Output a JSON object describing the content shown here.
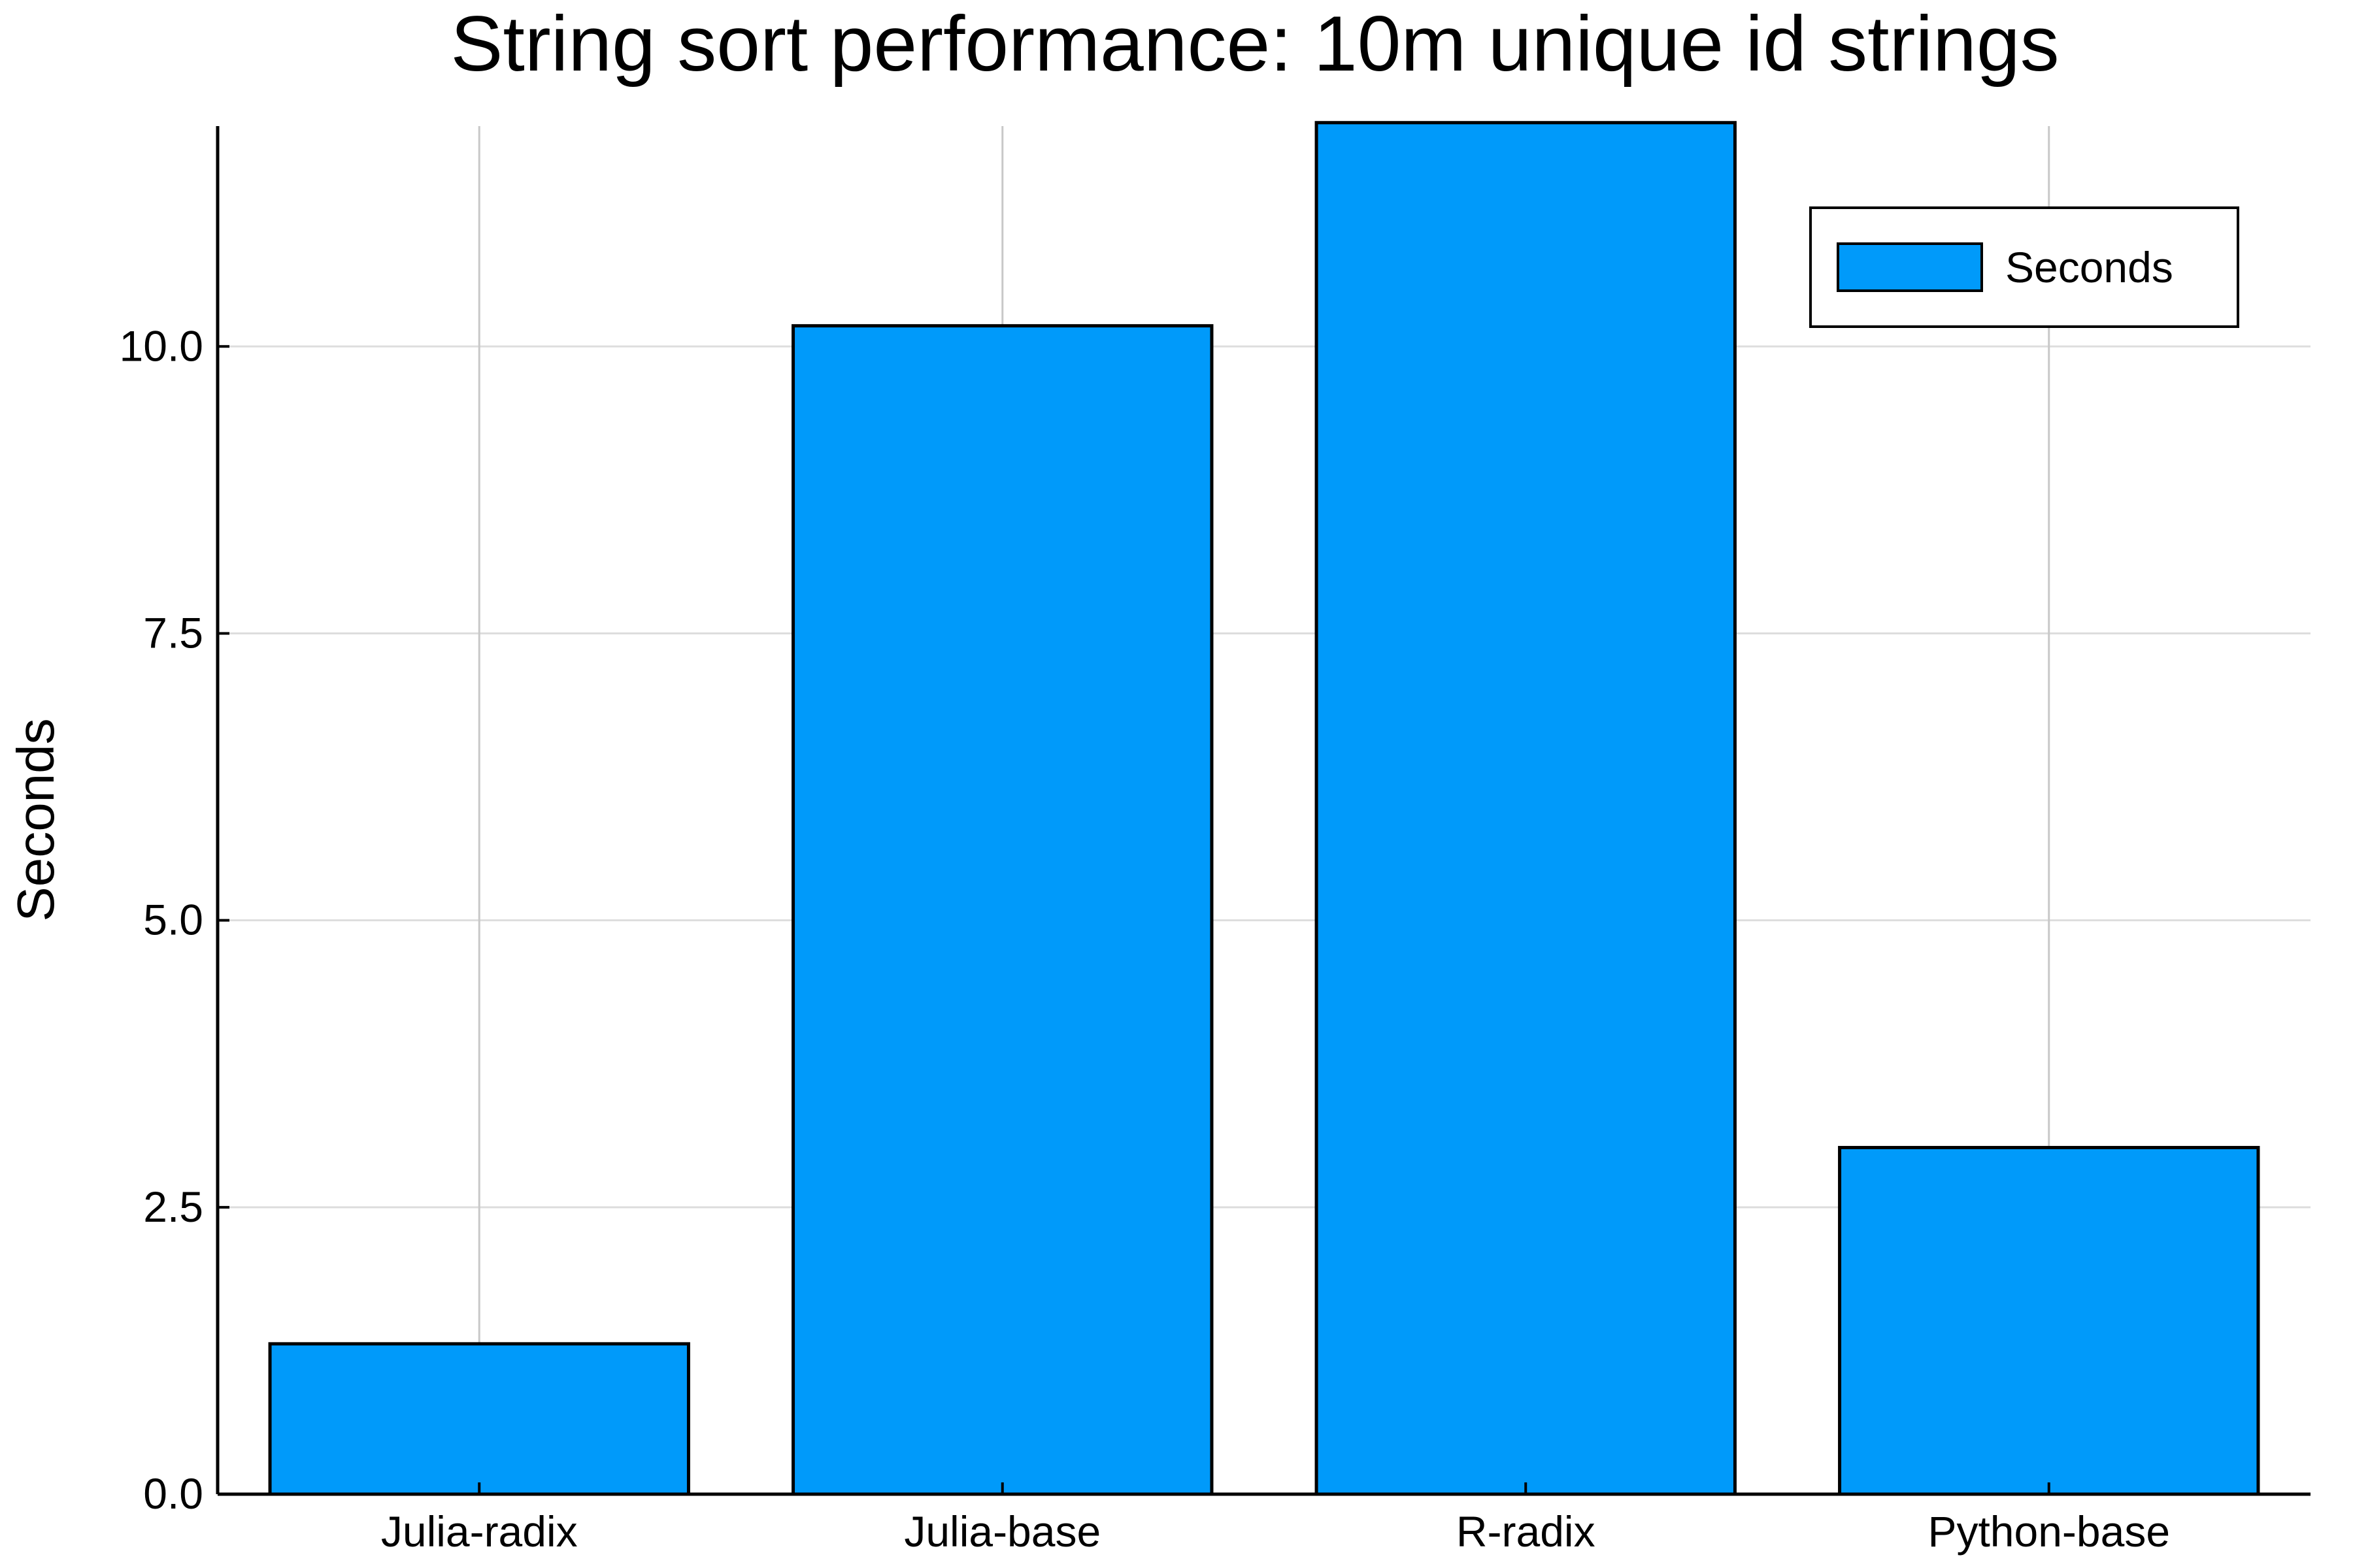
{
  "chart_data": {
    "type": "bar",
    "title": "String sort performance: 10m unique id strings",
    "xlabel": "",
    "ylabel": "Seconds",
    "categories": [
      "Julia-radix",
      "Julia-base",
      "R-radix",
      "Python-base"
    ],
    "series": [
      {
        "name": "Seconds",
        "values": [
          1.31,
          10.18,
          11.95,
          3.02
        ]
      }
    ],
    "ylim": [
      0,
      11.92
    ],
    "yticks": [
      0.0,
      2.5,
      5.0,
      7.5,
      10.0
    ],
    "ytick_labels": [
      "0.0",
      "2.5",
      "5.0",
      "7.5",
      "10.0"
    ],
    "grid": true,
    "legend": {
      "position": "top-right"
    },
    "colors": {
      "bar": "#009AFA",
      "bar_edge": "#000000",
      "grid": "#DDDDDD",
      "axis": "#000000"
    }
  }
}
